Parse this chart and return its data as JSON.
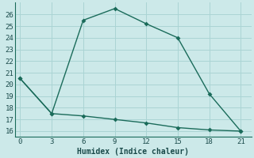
{
  "xlabel": "Humidex (Indice chaleur)",
  "ylabel": "",
  "background_color": "#cce9e9",
  "grid_color": "#aad4d4",
  "line_color": "#1a6b5a",
  "x_upper": [
    0,
    3,
    6,
    9,
    12,
    15,
    18,
    21
  ],
  "y_upper": [
    20.5,
    17.5,
    25.5,
    26.5,
    25.2,
    24.0,
    19.2,
    16.0
  ],
  "x_lower": [
    0,
    3,
    6,
    9,
    12,
    15,
    18,
    21
  ],
  "y_lower": [
    20.5,
    17.5,
    17.3,
    17.0,
    16.7,
    16.3,
    16.1,
    16.0
  ],
  "xlim": [
    -0.5,
    22
  ],
  "ylim": [
    15.5,
    27
  ],
  "xticks": [
    0,
    3,
    6,
    9,
    12,
    15,
    18,
    21
  ],
  "yticks": [
    16,
    17,
    18,
    19,
    20,
    21,
    22,
    23,
    24,
    25,
    26
  ],
  "marker": "D",
  "markersize": 3.0,
  "linewidth": 1.0,
  "tick_fontsize": 6.5,
  "xlabel_fontsize": 7.0
}
